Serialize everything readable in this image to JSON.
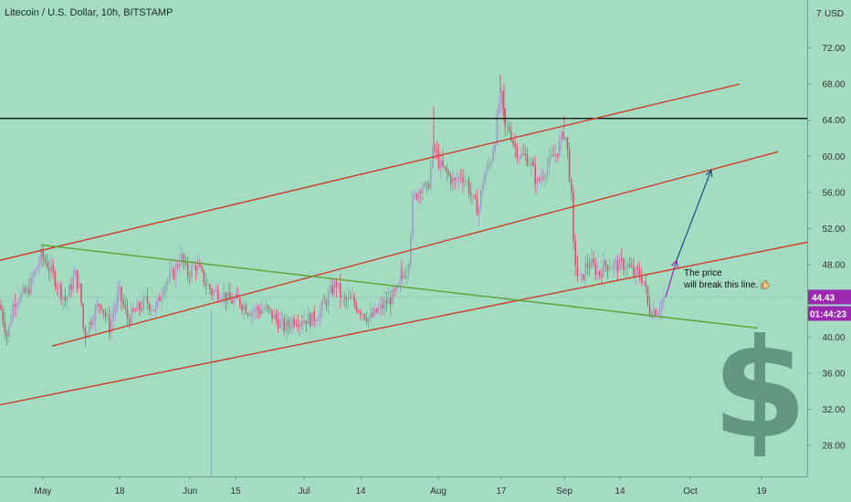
{
  "header": {
    "title": "Litecoin / U.S. Dollar, 10h, BITSTAMP"
  },
  "annotation": {
    "line1": "The price",
    "line2": "will break this line."
  },
  "chart_data": {
    "type": "candlestick",
    "currency_label": "USD",
    "y_axis": {
      "ticks": [
        28,
        32,
        36,
        40,
        44,
        48,
        52,
        56,
        60,
        64,
        68,
        72
      ],
      "tick_labels": [
        "28.00",
        "32.00",
        "36.00",
        "40.00",
        "44.00",
        "48.00",
        "52.00",
        "56.00",
        "60.00",
        "64.00",
        "68.00",
        "72.00"
      ],
      "top_partial_label": "7",
      "ylim": [
        24,
        77
      ]
    },
    "x_axis": {
      "labels": [
        "May",
        "18",
        "Jun",
        "15",
        "Jul",
        "14",
        "Aug",
        "17",
        "Sep",
        "14",
        "Oct",
        "19"
      ]
    },
    "last_price": {
      "label": "44.43",
      "value": 44.43,
      "color": "#9c27b0"
    },
    "countdown": {
      "label": "01:44:23",
      "color": "#9c27b0"
    },
    "horizontal_level": {
      "value": 64.2,
      "color": "#000000"
    },
    "candle_colors": {
      "up": "#9e9ac8",
      "down": "#e0516f"
    },
    "price_path": [
      [
        0,
        43.5
      ],
      [
        8,
        40
      ],
      [
        15,
        44
      ],
      [
        30,
        45
      ],
      [
        45,
        49
      ],
      [
        52,
        48
      ],
      [
        62,
        46
      ],
      [
        72,
        44
      ],
      [
        82,
        47
      ],
      [
        88,
        45
      ],
      [
        92,
        40
      ],
      [
        100,
        42
      ],
      [
        110,
        44
      ],
      [
        120,
        41
      ],
      [
        130,
        45
      ],
      [
        140,
        42
      ],
      [
        150,
        43
      ],
      [
        160,
        44
      ],
      [
        170,
        43
      ],
      [
        180,
        46
      ],
      [
        190,
        47
      ],
      [
        198,
        49
      ],
      [
        205,
        47
      ],
      [
        215,
        48
      ],
      [
        225,
        46
      ],
      [
        232,
        45
      ],
      [
        242,
        45
      ],
      [
        252,
        44
      ],
      [
        262,
        44
      ],
      [
        272,
        43
      ],
      [
        282,
        43
      ],
      [
        292,
        43
      ],
      [
        302,
        42
      ],
      [
        312,
        41
      ],
      [
        322,
        42
      ],
      [
        332,
        42
      ],
      [
        342,
        42
      ],
      [
        352,
        43
      ],
      [
        362,
        45
      ],
      [
        368,
        46
      ],
      [
        375,
        44
      ],
      [
        385,
        44
      ],
      [
        395,
        43
      ],
      [
        405,
        42
      ],
      [
        415,
        43
      ],
      [
        425,
        44
      ],
      [
        435,
        45
      ],
      [
        442,
        47
      ],
      [
        447,
        48
      ],
      [
        452,
        55
      ],
      [
        457,
        56
      ],
      [
        462,
        57
      ],
      [
        468,
        56
      ],
      [
        475,
        61
      ],
      [
        482,
        59
      ],
      [
        490,
        58
      ],
      [
        498,
        57
      ],
      [
        505,
        58
      ],
      [
        512,
        57
      ],
      [
        518,
        55
      ],
      [
        524,
        54
      ],
      [
        530,
        58
      ],
      [
        536,
        59
      ],
      [
        542,
        62
      ],
      [
        548,
        67
      ],
      [
        553,
        63
      ],
      [
        558,
        63
      ],
      [
        564,
        61
      ],
      [
        570,
        60
      ],
      [
        576,
        60
      ],
      [
        582,
        59
      ],
      [
        588,
        57
      ],
      [
        594,
        58
      ],
      [
        600,
        59
      ],
      [
        606,
        60
      ],
      [
        612,
        61
      ],
      [
        618,
        63
      ],
      [
        622,
        60
      ],
      [
        626,
        55
      ],
      [
        628,
        50
      ],
      [
        632,
        47
      ],
      [
        636,
        46
      ],
      [
        642,
        48
      ],
      [
        648,
        48
      ],
      [
        656,
        47
      ],
      [
        662,
        48
      ],
      [
        670,
        48
      ],
      [
        678,
        48
      ],
      [
        686,
        48
      ],
      [
        694,
        47
      ],
      [
        700,
        47
      ],
      [
        706,
        46
      ],
      [
        710,
        43
      ],
      [
        715,
        43
      ],
      [
        720,
        43
      ],
      [
        725,
        44
      ],
      [
        729,
        44.43
      ]
    ],
    "trendlines": [
      {
        "name": "channel-upper",
        "color": "#d13b2a",
        "points": [
          [
            0,
            48.5
          ],
          [
            810,
            68
          ]
        ]
      },
      {
        "name": "channel-middle",
        "color": "#d13b2a",
        "points": [
          [
            57,
            39
          ],
          [
            852,
            60.5
          ]
        ]
      },
      {
        "name": "channel-lower",
        "color": "#d13b2a",
        "points": [
          [
            0,
            32.5
          ],
          [
            884,
            50.5
          ]
        ]
      },
      {
        "name": "descending",
        "color": "#5fa030",
        "points": [
          [
            45,
            50.2
          ],
          [
            830,
            41
          ]
        ]
      }
    ],
    "projection": {
      "short": {
        "color": "#9c27b0",
        "points": [
          [
            729,
            44.4
          ],
          [
            741,
            48.5
          ]
        ]
      },
      "long": {
        "color": "#1a4f86",
        "points": [
          [
            741,
            48.5
          ],
          [
            779,
            58.5
          ]
        ]
      }
    }
  },
  "overlay": {
    "dollar_glyph": "$",
    "icon": "dollar-sign-icon",
    "color": "#5a8b78"
  }
}
